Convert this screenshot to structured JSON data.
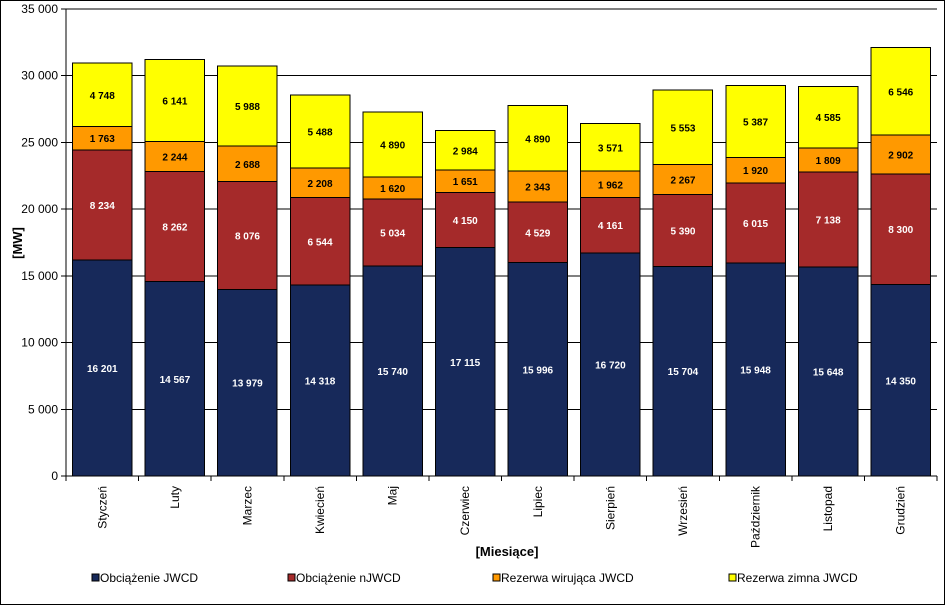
{
  "chart_data": {
    "type": "bar",
    "stacked": true,
    "title": "",
    "xlabel": "[Miesiące]",
    "ylabel": "[MW]",
    "ylim": [
      0,
      35000
    ],
    "ytick_step": 5000,
    "ytick_labels": [
      "0",
      "5 000",
      "10 000",
      "15 000",
      "20 000",
      "25 000",
      "30 000",
      "35 000"
    ],
    "grid": true,
    "legend_position": "bottom",
    "categories": [
      "Styczeń",
      "Luty",
      "Marzec",
      "Kwiecień",
      "Maj",
      "Czerwiec",
      "Lipiec",
      "Sierpień",
      "Wrzesień",
      "Październik",
      "Listopad",
      "Grudzień"
    ],
    "series": [
      {
        "name": "Obciążenie JWCD",
        "color": "#17295a",
        "label_color": "#ffffff",
        "values": [
          16201,
          14567,
          13979,
          14318,
          15740,
          17115,
          15996,
          16720,
          15704,
          15948,
          15648,
          14350
        ],
        "labels": [
          "16 201",
          "14 567",
          "13 979",
          "14 318",
          "15 740",
          "17 115",
          "15 996",
          "16 720",
          "15 704",
          "15 948",
          "15 648",
          "14 350"
        ]
      },
      {
        "name": "Obciążenie nJWCD",
        "color": "#a52a2a",
        "label_color": "#ffffff",
        "values": [
          8234,
          8262,
          8076,
          6544,
          5034,
          4150,
          4529,
          4161,
          5390,
          6015,
          7138,
          8300
        ],
        "labels": [
          "8 234",
          "8 262",
          "8 076",
          "6 544",
          "5 034",
          "4 150",
          "4 529",
          "4 161",
          "5 390",
          "6 015",
          "7 138",
          "8 300"
        ]
      },
      {
        "name": "Rezerwa wirująca JWCD",
        "color": "#ff9900",
        "label_color": "#000000",
        "values": [
          1763,
          2244,
          2688,
          2208,
          1620,
          1651,
          2343,
          1962,
          2267,
          1920,
          1809,
          2902
        ],
        "labels": [
          "1 763",
          "2 244",
          "2 688",
          "2 208",
          "1 620",
          "1 651",
          "2 343",
          "1 962",
          "2 267",
          "1 920",
          "1 809",
          "2 902"
        ]
      },
      {
        "name": "Rezerwa zimna JWCD",
        "color": "#ffff00",
        "label_color": "#000000",
        "values": [
          4748,
          6141,
          5988,
          5488,
          4890,
          2984,
          4890,
          3571,
          5553,
          5387,
          4585,
          6546
        ],
        "labels": [
          "4 748",
          "6 141",
          "5 988",
          "5 488",
          "4 890",
          "2 984",
          "4 890",
          "3 571",
          "5 553",
          "5 387",
          "4 585",
          "6 546"
        ]
      }
    ]
  }
}
